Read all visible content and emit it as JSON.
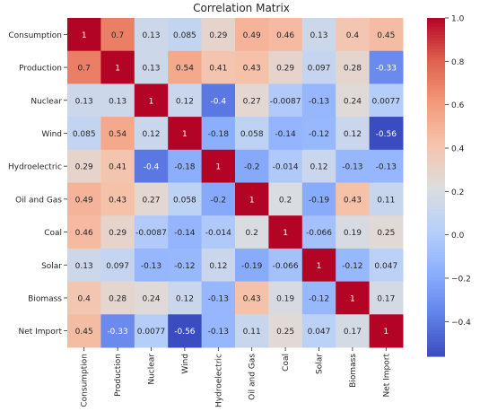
{
  "chart_data": {
    "type": "heatmap",
    "title": "Correlation Matrix",
    "xlabel": "",
    "ylabel": "",
    "labels": [
      "Consumption",
      "Production",
      "Nuclear",
      "Wind",
      "Hydroelectric",
      "Oil and Gas",
      "Coal",
      "Solar",
      "Biomass",
      "Net Import"
    ],
    "values": [
      [
        1,
        0.7,
        0.13,
        0.085,
        0.29,
        0.49,
        0.46,
        0.13,
        0.4,
        0.45
      ],
      [
        0.7,
        1,
        0.13,
        0.54,
        0.41,
        0.43,
        0.29,
        0.097,
        0.28,
        -0.33
      ],
      [
        0.13,
        0.13,
        1,
        0.12,
        -0.4,
        0.27,
        -0.0087,
        -0.13,
        0.24,
        0.0077
      ],
      [
        0.085,
        0.54,
        0.12,
        1,
        -0.18,
        0.058,
        -0.14,
        -0.12,
        0.12,
        -0.56
      ],
      [
        0.29,
        0.41,
        -0.4,
        -0.18,
        1,
        -0.2,
        -0.014,
        0.12,
        -0.13,
        -0.13
      ],
      [
        0.49,
        0.43,
        0.27,
        0.058,
        -0.2,
        1,
        0.2,
        -0.19,
        0.43,
        0.11
      ],
      [
        0.46,
        0.29,
        -0.0087,
        -0.14,
        -0.014,
        0.2,
        1,
        -0.066,
        0.19,
        0.25
      ],
      [
        0.13,
        0.097,
        -0.13,
        -0.12,
        0.12,
        -0.19,
        -0.066,
        1,
        -0.12,
        0.047
      ],
      [
        0.4,
        0.28,
        0.24,
        0.12,
        -0.13,
        0.43,
        0.19,
        -0.12,
        1,
        0.17
      ],
      [
        0.45,
        -0.33,
        0.0077,
        -0.56,
        -0.13,
        0.11,
        0.25,
        0.047,
        0.17,
        1
      ]
    ],
    "colorbar": {
      "colormap": "coolwarm",
      "range": [
        -0.56,
        1.0
      ],
      "ticks": [
        1.0,
        0.8,
        0.6,
        0.4,
        0.2,
        0.0,
        -0.2,
        -0.4
      ],
      "tick_labels": [
        "1.0",
        "0.8",
        "0.6",
        "0.4",
        "0.2",
        "0.0",
        "−0.2",
        "−0.4"
      ]
    },
    "annotations": true,
    "grid": false
  }
}
